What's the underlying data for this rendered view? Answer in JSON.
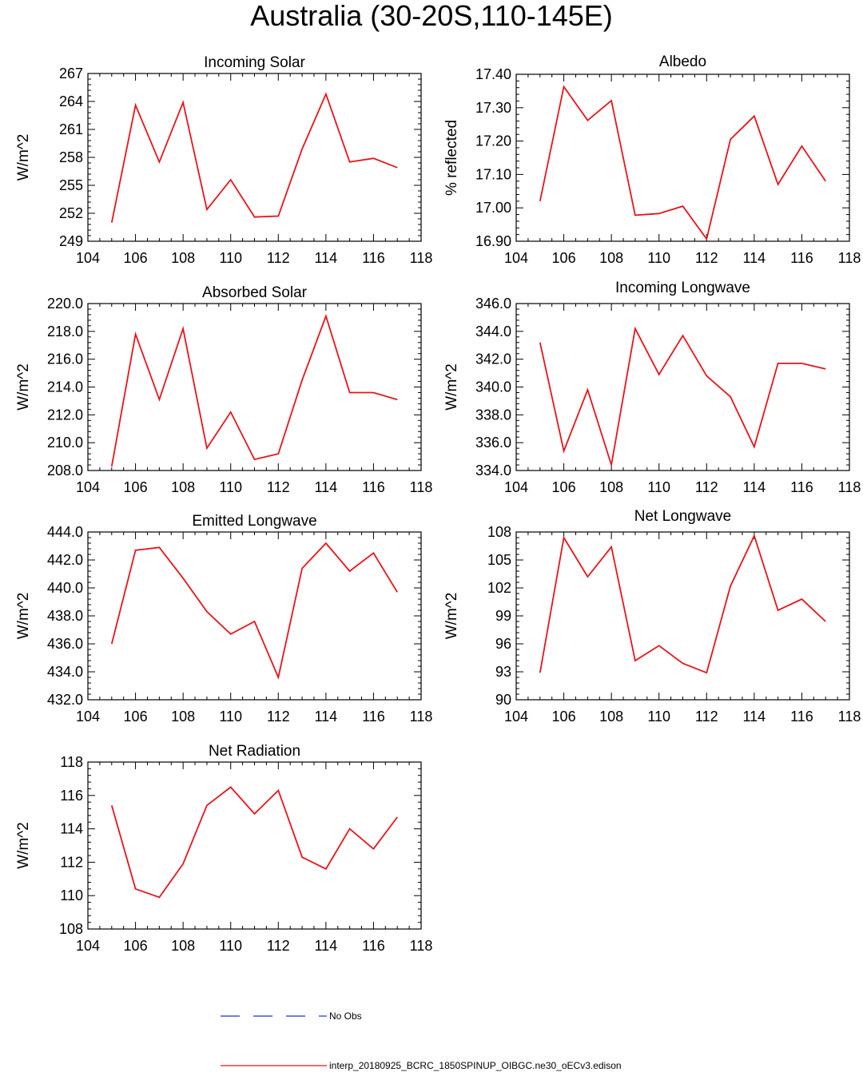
{
  "figure": {
    "title": "Australia (30-20S,110-145E)",
    "series_color": "#e8141a",
    "obs_color": "#1f2dd6"
  },
  "legend": {
    "obs_label": "No Obs",
    "model_label": "interp_20180925_BCRC_1850SPINUP_OIBGC.ne30_oECv3.edison"
  },
  "chart_data": [
    {
      "type": "line",
      "title": "Incoming Solar",
      "ylabel": "W/m^2",
      "xlim": [
        104,
        118
      ],
      "ylim": [
        249,
        267
      ],
      "xticks": [
        104,
        106,
        108,
        110,
        112,
        114,
        116,
        118
      ],
      "yticks": [
        249,
        252,
        255,
        258,
        261,
        264,
        267
      ],
      "ytick_labels": [
        "249",
        "252",
        "255",
        "258",
        "261",
        "264",
        "267"
      ],
      "x": [
        105,
        106,
        107,
        108,
        109,
        110,
        111,
        112,
        113,
        114,
        115,
        116,
        117
      ],
      "series": [
        {
          "values": [
            251.0,
            263.6,
            257.5,
            263.9,
            252.4,
            255.6,
            251.6,
            251.7,
            258.9,
            264.8,
            257.5,
            257.9,
            256.9
          ]
        }
      ]
    },
    {
      "type": "line",
      "title": "Albedo",
      "ylabel": "% reflected",
      "xlim": [
        104,
        118
      ],
      "ylim": [
        16.9,
        17.4
      ],
      "xticks": [
        104,
        106,
        108,
        110,
        112,
        114,
        116,
        118
      ],
      "yticks": [
        16.9,
        17.0,
        17.1,
        17.2,
        17.3,
        17.4
      ],
      "ytick_labels": [
        "16.90",
        "17.00",
        "17.10",
        "17.20",
        "17.30",
        "17.40"
      ],
      "x": [
        105,
        106,
        107,
        108,
        109,
        110,
        111,
        112,
        113,
        114,
        115,
        116,
        117
      ],
      "series": [
        {
          "values": [
            17.02,
            17.363,
            17.262,
            17.321,
            16.978,
            16.983,
            17.005,
            16.907,
            17.205,
            17.275,
            17.07,
            17.185,
            17.08
          ]
        }
      ]
    },
    {
      "type": "line",
      "title": "Absorbed Solar",
      "ylabel": "W/m^2",
      "xlim": [
        104,
        118
      ],
      "ylim": [
        208,
        220
      ],
      "xticks": [
        104,
        106,
        108,
        110,
        112,
        114,
        116,
        118
      ],
      "yticks": [
        208,
        210,
        212,
        214,
        216,
        218,
        220
      ],
      "ytick_labels": [
        "208.0",
        "210.0",
        "212.0",
        "214.0",
        "216.0",
        "218.0",
        "220.0"
      ],
      "x": [
        105,
        106,
        107,
        108,
        109,
        110,
        111,
        112,
        113,
        114,
        115,
        116,
        117
      ],
      "series": [
        {
          "values": [
            208.3,
            217.8,
            213.1,
            218.2,
            209.6,
            212.2,
            208.8,
            209.2,
            214.5,
            219.1,
            213.6,
            213.6,
            213.1
          ]
        }
      ]
    },
    {
      "type": "line",
      "title": "Incoming Longwave",
      "ylabel": "W/m^2",
      "xlim": [
        104,
        118
      ],
      "ylim": [
        334,
        346
      ],
      "xticks": [
        104,
        106,
        108,
        110,
        112,
        114,
        116,
        118
      ],
      "yticks": [
        334,
        336,
        338,
        340,
        342,
        344,
        346
      ],
      "ytick_labels": [
        "334.0",
        "336.0",
        "338.0",
        "340.0",
        "342.0",
        "344.0",
        "346.0"
      ],
      "x": [
        105,
        106,
        107,
        108,
        109,
        110,
        111,
        112,
        113,
        114,
        115,
        116,
        117
      ],
      "series": [
        {
          "values": [
            343.2,
            335.4,
            339.8,
            334.4,
            344.2,
            340.9,
            343.7,
            340.8,
            339.3,
            335.7,
            341.7,
            341.7,
            341.3
          ]
        }
      ]
    },
    {
      "type": "line",
      "title": "Emitted Longwave",
      "ylabel": "W/m^2",
      "xlim": [
        104,
        118
      ],
      "ylim": [
        432,
        444
      ],
      "xticks": [
        104,
        106,
        108,
        110,
        112,
        114,
        116,
        118
      ],
      "yticks": [
        432,
        434,
        436,
        438,
        440,
        442,
        444
      ],
      "ytick_labels": [
        "432.0",
        "434.0",
        "436.0",
        "438.0",
        "440.0",
        "442.0",
        "444.0"
      ],
      "x": [
        105,
        106,
        107,
        108,
        109,
        110,
        111,
        112,
        113,
        114,
        115,
        116,
        117
      ],
      "series": [
        {
          "values": [
            436.0,
            442.7,
            442.9,
            440.7,
            438.3,
            436.7,
            437.6,
            433.6,
            441.4,
            443.2,
            441.2,
            442.5,
            439.7
          ]
        }
      ]
    },
    {
      "type": "line",
      "title": "Net Longwave",
      "ylabel": "W/m^2",
      "xlim": [
        104,
        118
      ],
      "ylim": [
        90,
        108
      ],
      "xticks": [
        104,
        106,
        108,
        110,
        112,
        114,
        116,
        118
      ],
      "yticks": [
        90,
        93,
        96,
        99,
        102,
        105,
        108
      ],
      "ytick_labels": [
        "90",
        "93",
        "96",
        "99",
        "102",
        "105",
        "108"
      ],
      "x": [
        105,
        106,
        107,
        108,
        109,
        110,
        111,
        112,
        113,
        114,
        115,
        116,
        117
      ],
      "series": [
        {
          "values": [
            92.9,
            107.4,
            103.2,
            106.4,
            94.2,
            95.8,
            93.9,
            92.9,
            102.2,
            107.6,
            99.6,
            100.8,
            98.4
          ]
        }
      ]
    },
    {
      "type": "line",
      "title": "Net Radiation",
      "ylabel": "W/m^2",
      "xlim": [
        104,
        118
      ],
      "ylim": [
        108,
        118
      ],
      "xticks": [
        104,
        106,
        108,
        110,
        112,
        114,
        116,
        118
      ],
      "yticks": [
        108,
        110,
        112,
        114,
        116,
        118
      ],
      "ytick_labels": [
        "108",
        "110",
        "112",
        "114",
        "116",
        "118"
      ],
      "x": [
        105,
        106,
        107,
        108,
        109,
        110,
        111,
        112,
        113,
        114,
        115,
        116,
        117
      ],
      "series": [
        {
          "values": [
            115.4,
            110.4,
            109.9,
            111.9,
            115.4,
            116.5,
            114.9,
            116.3,
            112.3,
            111.6,
            114.0,
            112.8,
            114.7
          ]
        }
      ]
    }
  ]
}
